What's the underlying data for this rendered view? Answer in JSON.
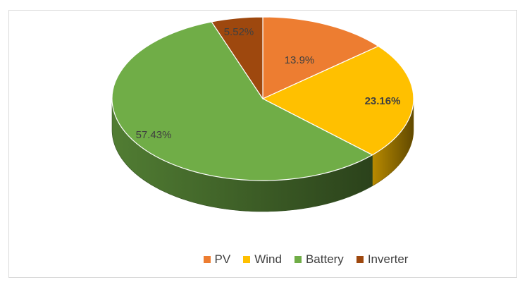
{
  "chart_data": {
    "type": "pie",
    "style": "3d",
    "series": [
      {
        "name": "PV",
        "value": 13.9,
        "label": "13.9%",
        "color": "#ED7D31"
      },
      {
        "name": "Wind",
        "value": 23.16,
        "label": "23.16%",
        "color": "#FFC000"
      },
      {
        "name": "Battery",
        "value": 57.43,
        "label": "57.43%",
        "color": "#70AD47"
      },
      {
        "name": "Inverter",
        "value": 5.52,
        "label": "5.52%",
        "color": "#9E480E"
      }
    ],
    "legend_position": "bottom",
    "title": ""
  },
  "legend": {
    "items": [
      {
        "label": "PV",
        "color": "#ED7D31"
      },
      {
        "label": "Wind",
        "color": "#FFC000"
      },
      {
        "label": "Battery",
        "color": "#70AD47"
      },
      {
        "label": "Inverter",
        "color": "#9E480E"
      }
    ]
  }
}
